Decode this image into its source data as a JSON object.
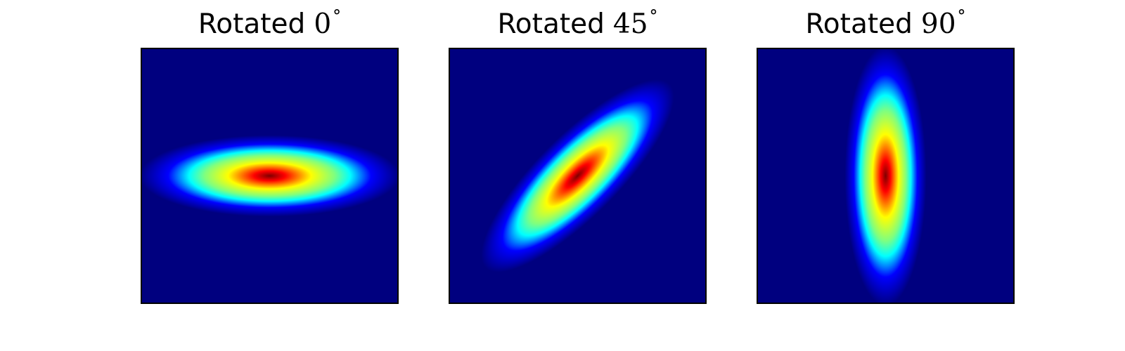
{
  "chart_data": [
    {
      "type": "heatmap",
      "title": {
        "word": "Rotated",
        "angle": "0",
        "degree_symbol": "°"
      },
      "rotation_deg": 0,
      "colormap": "jet",
      "grid": false,
      "axes_ticks": false
    },
    {
      "type": "heatmap",
      "title": {
        "word": "Rotated",
        "angle": "45",
        "degree_symbol": "°"
      },
      "rotation_deg": 45,
      "colormap": "jet",
      "grid": false,
      "axes_ticks": false
    },
    {
      "type": "heatmap",
      "title": {
        "word": "Rotated",
        "angle": "90",
        "degree_symbol": "°"
      },
      "rotation_deg": 90,
      "colormap": "jet",
      "grid": false,
      "axes_ticks": false
    }
  ],
  "colors": {
    "background": "#00007f",
    "jet_stops": [
      "#00007f",
      "#0000ff",
      "#00ffff",
      "#7fff7f",
      "#ffff00",
      "#ff0000",
      "#7f0000"
    ]
  }
}
